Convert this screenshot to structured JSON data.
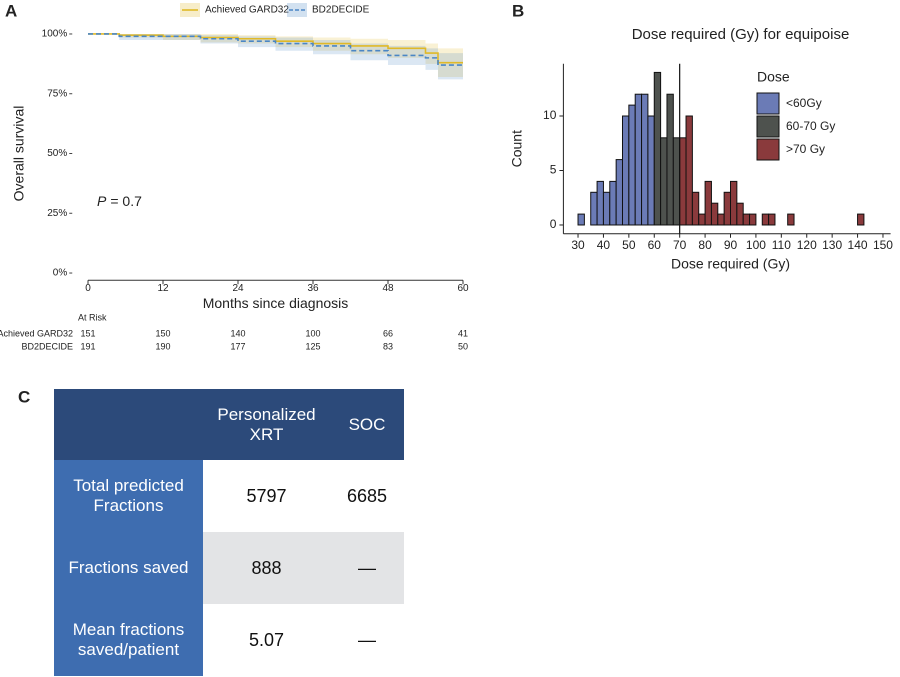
{
  "panel_labels": [
    "A",
    "B",
    "C"
  ],
  "chart_data": [
    {
      "type": "line",
      "step": true,
      "xlabel": "Months since diagnosis",
      "ylabel": "Overall survival",
      "annotation_var": "P",
      "annotation_text": "= 0.7",
      "x": [
        0,
        5,
        12,
        18,
        24,
        30,
        36,
        42,
        48,
        54,
        56,
        60
      ],
      "xlim": [
        -3,
        63
      ],
      "xticks": [
        0,
        12,
        24,
        36,
        48,
        60
      ],
      "ylim": [
        -3,
        103
      ],
      "yticks": [
        {
          "value": 0,
          "label": "0%"
        },
        {
          "value": 25,
          "label": "25%"
        },
        {
          "value": 50,
          "label": "50%"
        },
        {
          "value": 75,
          "label": "75%"
        },
        {
          "value": 100,
          "label": "100%"
        }
      ],
      "grid": false,
      "series": [
        {
          "name": "Achieved GARD32",
          "color": "#e0b928",
          "dash": false,
          "values": [
            100,
            99.5,
            99,
            98.5,
            98,
            97,
            96,
            95,
            94,
            92,
            88,
            88
          ],
          "upper": [
            100,
            100,
            100,
            100,
            99.5,
            99,
            98.5,
            98,
            97.5,
            96,
            94,
            94
          ],
          "lower": [
            100,
            98.5,
            97.5,
            96.5,
            96,
            94.5,
            93,
            91.5,
            90,
            87.5,
            82,
            82
          ]
        },
        {
          "name": "BD2DECIDE",
          "color": "#4a86c5",
          "dash": true,
          "values": [
            100,
            99,
            99,
            98,
            97,
            96,
            95,
            93,
            91,
            90,
            87,
            87
          ],
          "upper": [
            100,
            100,
            100,
            99.5,
            99,
            98.5,
            97.5,
            96,
            95,
            94,
            92,
            92
          ],
          "lower": [
            100,
            97.5,
            97.5,
            96,
            94.5,
            93,
            91.5,
            89,
            87,
            85,
            81,
            81
          ]
        }
      ],
      "risk_table": {
        "title": "At Risk",
        "rows": [
          {
            "name": "Achieved GARD32",
            "values": [
              151,
              150,
              140,
              100,
              66,
              41
            ]
          },
          {
            "name": "BD2DECIDE",
            "values": [
              191,
              190,
              177,
              125,
              83,
              50
            ]
          }
        ]
      }
    },
    {
      "type": "histogram",
      "title": "Dose required (Gy) for equipoise",
      "xlabel": "Dose required (Gy)",
      "ylabel": "Count",
      "legend_title": "Dose",
      "vline": 70,
      "xlim": [
        27,
        153
      ],
      "xticks": [
        30,
        40,
        50,
        60,
        70,
        80,
        90,
        100,
        110,
        120,
        130,
        140,
        150
      ],
      "ylim": [
        -0.8,
        14.8
      ],
      "yticks": [
        0,
        5,
        10
      ],
      "grid": false,
      "series": [
        {
          "name": "<60Gy",
          "color": "#6b7bb6",
          "bins": [
            30,
            32.5,
            35,
            37.5,
            40,
            42.5,
            45,
            47.5,
            50,
            52.5,
            55,
            57.5,
            60
          ],
          "values": [
            1,
            0,
            3,
            4,
            3,
            4,
            6,
            10,
            11,
            12,
            12,
            10
          ]
        },
        {
          "name": "60-70 Gy",
          "color": "#4e524e",
          "bins": [
            60,
            62.5,
            65,
            67.5,
            70
          ],
          "values": [
            14,
            8,
            12,
            8
          ]
        },
        {
          "name": ">70 Gy",
          "color": "#8a3a3c",
          "bins": [
            70,
            72.5,
            75,
            77.5,
            80,
            82.5,
            85,
            87.5,
            90,
            92.5,
            95,
            97.5,
            100,
            102.5,
            105,
            107.5,
            110,
            112.5,
            115,
            117.5,
            120,
            122.5,
            125,
            127.5,
            130,
            132.5,
            135,
            137.5,
            140,
            142.5
          ],
          "values": [
            8,
            10,
            3,
            1,
            4,
            2,
            1,
            3,
            4,
            2,
            1,
            1,
            0,
            1,
            1,
            0,
            0,
            1,
            0,
            0,
            0,
            0,
            0,
            0,
            0,
            0,
            0,
            0,
            1
          ]
        }
      ]
    }
  ],
  "table": {
    "columns": [
      "Personalized XRT",
      "SOC"
    ],
    "rows": [
      {
        "label": "Total predicted Fractions",
        "values": [
          5797,
          6685
        ]
      },
      {
        "label": "Fractions saved",
        "values": [
          888,
          "—"
        ]
      },
      {
        "label": "Mean fractions saved/patient",
        "values": [
          5.07,
          "—"
        ]
      }
    ]
  }
}
